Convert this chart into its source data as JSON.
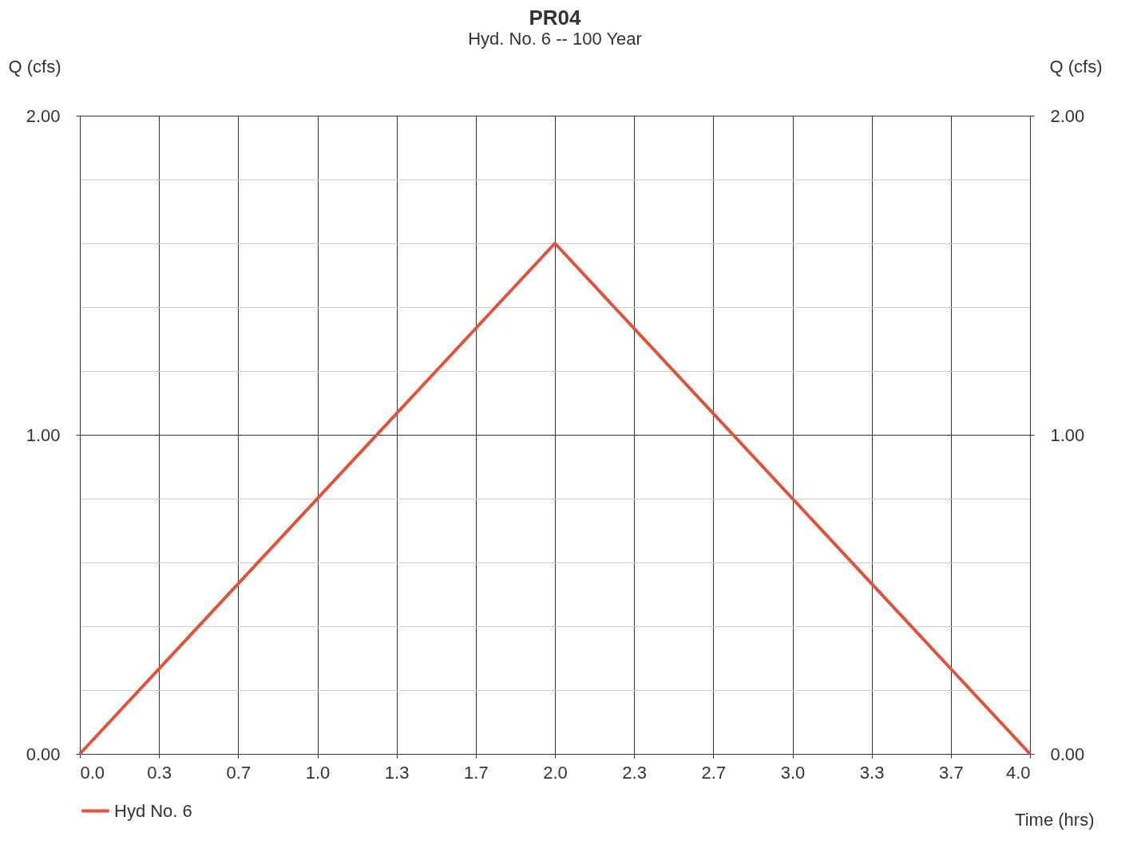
{
  "chart_data": {
    "type": "line",
    "title": "PR04",
    "subtitle": "Hyd. No. 6 -- 100 Year",
    "xlabel": "Time (hrs)",
    "ylabel": "Q (cfs)",
    "y2label": "Q (cfs)",
    "x": [
      0,
      2,
      4
    ],
    "series": [
      {
        "name": "Hyd No. 6",
        "color": "#e0523a",
        "values": [
          0,
          1.6,
          0
        ]
      }
    ],
    "xlim": [
      0,
      4
    ],
    "ylim": [
      0,
      2
    ],
    "y2lim": [
      0,
      2
    ],
    "xticks": [
      {
        "value": 0,
        "label": "0.0"
      },
      {
        "value": 0.3333,
        "label": "0.3"
      },
      {
        "value": 0.6667,
        "label": "0.7"
      },
      {
        "value": 1,
        "label": "1.0"
      },
      {
        "value": 1.3333,
        "label": "1.3"
      },
      {
        "value": 1.6667,
        "label": "1.7"
      },
      {
        "value": 2,
        "label": "2.0"
      },
      {
        "value": 2.3333,
        "label": "2.3"
      },
      {
        "value": 2.6667,
        "label": "2.7"
      },
      {
        "value": 3,
        "label": "3.0"
      },
      {
        "value": 3.3333,
        "label": "3.3"
      },
      {
        "value": 3.6667,
        "label": "3.7"
      },
      {
        "value": 4,
        "label": "4.0"
      }
    ],
    "yticks": [
      {
        "value": 0,
        "label": "0.00"
      },
      {
        "value": 0.2,
        "label": null
      },
      {
        "value": 0.4,
        "label": null
      },
      {
        "value": 0.6,
        "label": null
      },
      {
        "value": 0.8,
        "label": null
      },
      {
        "value": 1,
        "label": "1.00"
      },
      {
        "value": 1.2,
        "label": null
      },
      {
        "value": 1.4,
        "label": null
      },
      {
        "value": 1.6,
        "label": null
      },
      {
        "value": 1.8,
        "label": null
      },
      {
        "value": 2,
        "label": "2.00"
      }
    ],
    "y2ticks": [
      {
        "value": 0,
        "label": "0.00"
      },
      {
        "value": 1,
        "label": "1.00"
      },
      {
        "value": 2,
        "label": "2.00"
      }
    ],
    "grid": true,
    "legend": "bottom left",
    "marker": "none",
    "line_style": "solid"
  }
}
